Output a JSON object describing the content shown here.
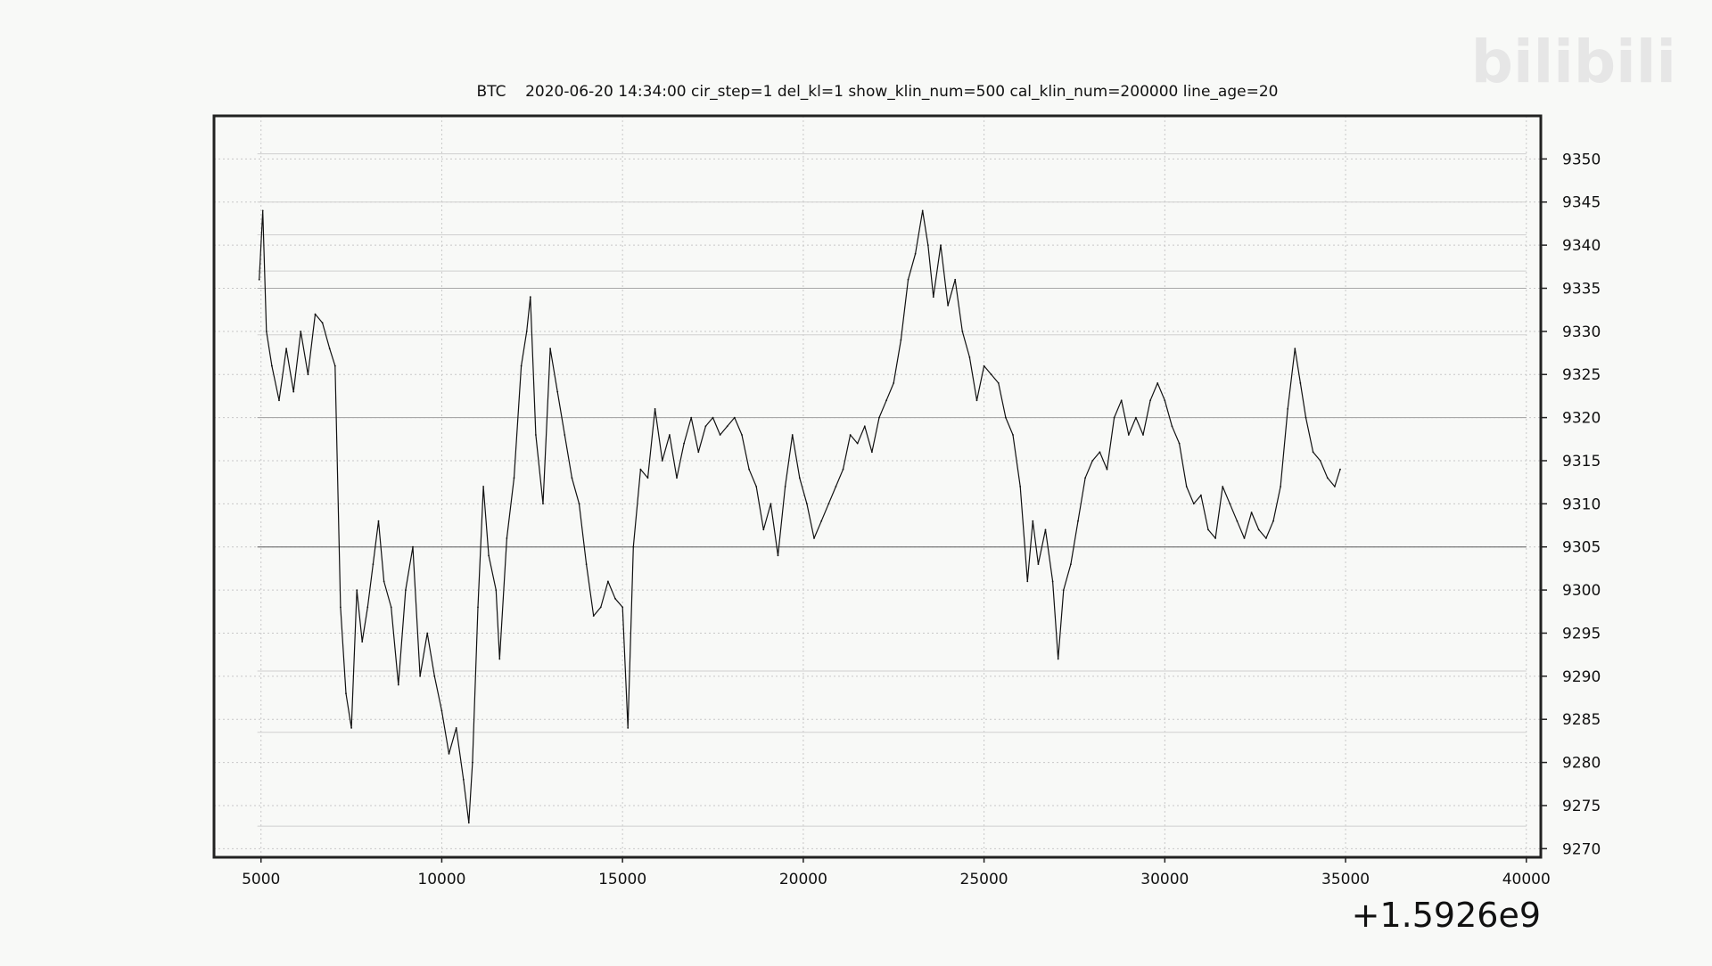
{
  "watermark": {
    "text": "bilibili"
  },
  "chart_data": {
    "type": "line",
    "title": "BTC    2020-06-20 14:34:00 cir_step=1 del_kl=1 show_klin_num=500 cal_klin_num=200000 line_age=20",
    "xlabel": "",
    "ylabel": "",
    "x_offset_label": "+1.5926e9",
    "xlim": [
      3700,
      40400
    ],
    "ylim": [
      9269,
      9355
    ],
    "grid": true,
    "legend": "none",
    "x_ticks": [
      5000,
      10000,
      15000,
      20000,
      25000,
      30000,
      35000,
      40000
    ],
    "x_tick_labels": [
      "5000",
      "10000",
      "15000",
      "20000",
      "25000",
      "30000",
      "35000",
      "40000"
    ],
    "y_ticks": [
      9270,
      9275,
      9280,
      9285,
      9290,
      9295,
      9300,
      9305,
      9310,
      9315,
      9320,
      9325,
      9330,
      9335,
      9340,
      9345,
      9350
    ],
    "y_tick_labels": [
      "9270",
      "9275",
      "9280",
      "9285",
      "9290",
      "9295",
      "9300",
      "9305",
      "9310",
      "9315",
      "9320",
      "9325",
      "9330",
      "9335",
      "9340",
      "9345",
      "9350"
    ],
    "horizontal_levels": [
      {
        "y": 9305.0,
        "x_start": 4900,
        "x_end": 40000,
        "strength": "strong"
      },
      {
        "y": 9320.0,
        "x_start": 4900,
        "x_end": 40000,
        "strength": "medium"
      },
      {
        "y": 9335.0,
        "x_start": 4900,
        "x_end": 40000,
        "strength": "medium"
      },
      {
        "y": 9345.0,
        "x_start": 4900,
        "x_end": 40000,
        "strength": "faint"
      },
      {
        "y": 9337.0,
        "x_start": 4900,
        "x_end": 40000,
        "strength": "faint"
      },
      {
        "y": 9341.2,
        "x_start": 4900,
        "x_end": 40000,
        "strength": "faint"
      },
      {
        "y": 9350.6,
        "x_start": 4900,
        "x_end": 40000,
        "strength": "faint"
      },
      {
        "y": 9329.6,
        "x_start": 4900,
        "x_end": 40000,
        "strength": "faint"
      },
      {
        "y": 9290.6,
        "x_start": 4900,
        "x_end": 40000,
        "strength": "faint"
      },
      {
        "y": 9283.5,
        "x_start": 4900,
        "x_end": 40000,
        "strength": "faint"
      },
      {
        "y": 9272.6,
        "x_start": 4900,
        "x_end": 40000,
        "strength": "faint"
      }
    ],
    "series": [
      {
        "color": "#111111",
        "points": [
          [
            4950,
            9336
          ],
          [
            5050,
            9344
          ],
          [
            5150,
            9330
          ],
          [
            5300,
            9326
          ],
          [
            5500,
            9322
          ],
          [
            5700,
            9328
          ],
          [
            5900,
            9323
          ],
          [
            6100,
            9330
          ],
          [
            6300,
            9325
          ],
          [
            6500,
            9332
          ],
          [
            6700,
            9331
          ],
          [
            6900,
            9328
          ],
          [
            7050,
            9326
          ],
          [
            7200,
            9298
          ],
          [
            7350,
            9288
          ],
          [
            7500,
            9284
          ],
          [
            7650,
            9300
          ],
          [
            7800,
            9294
          ],
          [
            7950,
            9298
          ],
          [
            8100,
            9303
          ],
          [
            8250,
            9308
          ],
          [
            8400,
            9301
          ],
          [
            8600,
            9298
          ],
          [
            8800,
            9289
          ],
          [
            9000,
            9300
          ],
          [
            9200,
            9305
          ],
          [
            9400,
            9290
          ],
          [
            9600,
            9295
          ],
          [
            9800,
            9290
          ],
          [
            10000,
            9286
          ],
          [
            10200,
            9281
          ],
          [
            10400,
            9284
          ],
          [
            10600,
            9278
          ],
          [
            10750,
            9273
          ],
          [
            10850,
            9280
          ],
          [
            11000,
            9298
          ],
          [
            11150,
            9312
          ],
          [
            11300,
            9304
          ],
          [
            11500,
            9300
          ],
          [
            11600,
            9292
          ],
          [
            11800,
            9306
          ],
          [
            12000,
            9313
          ],
          [
            12200,
            9326
          ],
          [
            12350,
            9330
          ],
          [
            12450,
            9334
          ],
          [
            12600,
            9318
          ],
          [
            12800,
            9310
          ],
          [
            13000,
            9328
          ],
          [
            13200,
            9323
          ],
          [
            13400,
            9318
          ],
          [
            13600,
            9313
          ],
          [
            13800,
            9310
          ],
          [
            14000,
            9303
          ],
          [
            14200,
            9297
          ],
          [
            14400,
            9298
          ],
          [
            14600,
            9301
          ],
          [
            14800,
            9299
          ],
          [
            15000,
            9298
          ],
          [
            15150,
            9284
          ],
          [
            15300,
            9305
          ],
          [
            15500,
            9314
          ],
          [
            15700,
            9313
          ],
          [
            15900,
            9321
          ],
          [
            16100,
            9315
          ],
          [
            16300,
            9318
          ],
          [
            16500,
            9313
          ],
          [
            16700,
            9317
          ],
          [
            16900,
            9320
          ],
          [
            17100,
            9316
          ],
          [
            17300,
            9319
          ],
          [
            17500,
            9320
          ],
          [
            17700,
            9318
          ],
          [
            17900,
            9319
          ],
          [
            18100,
            9320
          ],
          [
            18300,
            9318
          ],
          [
            18500,
            9314
          ],
          [
            18700,
            9312
          ],
          [
            18900,
            9307
          ],
          [
            19100,
            9310
          ],
          [
            19300,
            9304
          ],
          [
            19500,
            9312
          ],
          [
            19700,
            9318
          ],
          [
            19900,
            9313
          ],
          [
            20100,
            9310
          ],
          [
            20300,
            9306
          ],
          [
            20500,
            9308
          ],
          [
            20700,
            9310
          ],
          [
            20900,
            9312
          ],
          [
            21100,
            9314
          ],
          [
            21300,
            9318
          ],
          [
            21500,
            9317
          ],
          [
            21700,
            9319
          ],
          [
            21900,
            9316
          ],
          [
            22100,
            9320
          ],
          [
            22300,
            9322
          ],
          [
            22500,
            9324
          ],
          [
            22700,
            9329
          ],
          [
            22900,
            9336
          ],
          [
            23100,
            9339
          ],
          [
            23300,
            9344
          ],
          [
            23450,
            9340
          ],
          [
            23600,
            9334
          ],
          [
            23800,
            9340
          ],
          [
            24000,
            9333
          ],
          [
            24200,
            9336
          ],
          [
            24400,
            9330
          ],
          [
            24600,
            9327
          ],
          [
            24800,
            9322
          ],
          [
            25000,
            9326
          ],
          [
            25200,
            9325
          ],
          [
            25400,
            9324
          ],
          [
            25600,
            9320
          ],
          [
            25800,
            9318
          ],
          [
            26000,
            9312
          ],
          [
            26200,
            9301
          ],
          [
            26350,
            9308
          ],
          [
            26500,
            9303
          ],
          [
            26700,
            9307
          ],
          [
            26900,
            9301
          ],
          [
            27050,
            9292
          ],
          [
            27200,
            9300
          ],
          [
            27400,
            9303
          ],
          [
            27600,
            9308
          ],
          [
            27800,
            9313
          ],
          [
            28000,
            9315
          ],
          [
            28200,
            9316
          ],
          [
            28400,
            9314
          ],
          [
            28600,
            9320
          ],
          [
            28800,
            9322
          ],
          [
            29000,
            9318
          ],
          [
            29200,
            9320
          ],
          [
            29400,
            9318
          ],
          [
            29600,
            9322
          ],
          [
            29800,
            9324
          ],
          [
            30000,
            9322
          ],
          [
            30200,
            9319
          ],
          [
            30400,
            9317
          ],
          [
            30600,
            9312
          ],
          [
            30800,
            9310
          ],
          [
            31000,
            9311
          ],
          [
            31200,
            9307
          ],
          [
            31400,
            9306
          ],
          [
            31600,
            9312
          ],
          [
            31800,
            9310
          ],
          [
            32000,
            9308
          ],
          [
            32200,
            9306
          ],
          [
            32400,
            9309
          ],
          [
            32600,
            9307
          ],
          [
            32800,
            9306
          ],
          [
            33000,
            9308
          ],
          [
            33200,
            9312
          ],
          [
            33400,
            9321
          ],
          [
            33600,
            9328
          ],
          [
            33750,
            9324
          ],
          [
            33900,
            9320
          ],
          [
            34100,
            9316
          ],
          [
            34300,
            9315
          ],
          [
            34500,
            9313
          ],
          [
            34700,
            9312
          ],
          [
            34850,
            9314
          ]
        ]
      }
    ]
  }
}
